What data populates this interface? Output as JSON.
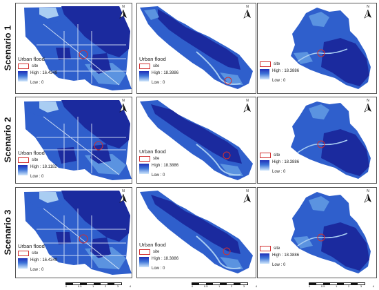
{
  "rows": [
    {
      "label": "Scenario 1",
      "panels": [
        {
          "legend": {
            "title": "Urban flood",
            "site": "site",
            "high": "High : 16.4349",
            "low": "Low : 0"
          }
        },
        {
          "legend": {
            "title": "Urban flood",
            "site": "site",
            "high": "High : 18.3886",
            "low": "Low : 0"
          }
        },
        {
          "legend": {
            "title": "Urban flood",
            "site": "site",
            "high": "High : 18.3886",
            "low": "Low : 0"
          }
        }
      ]
    },
    {
      "label": "Scenario 2",
      "panels": [
        {
          "legend": {
            "title": "Urban flood",
            "site": "site",
            "high": "High : 18.1182",
            "low": "Low : 0"
          }
        },
        {
          "legend": {
            "title": "Urban flood",
            "site": "site",
            "high": "High : 18.3886",
            "low": "Low : 0"
          }
        },
        {
          "legend": {
            "title": "Urban flood",
            "site": "site",
            "high": "High : 18.3886",
            "low": "Low : 0"
          }
        }
      ]
    },
    {
      "label": "Scenario 3",
      "panels": [
        {
          "legend": {
            "title": "Urban flood",
            "site": "site",
            "high": "High : 16.4349",
            "low": "Low : 0"
          }
        },
        {
          "legend": {
            "title": "Urban flood",
            "site": "site",
            "high": "High : 18.3886",
            "low": "Low : 0"
          }
        },
        {
          "legend": {
            "title": "Urban flood",
            "site": "site",
            "high": "High : 18.3886",
            "low": "Low : 0"
          }
        }
      ]
    }
  ],
  "north_label": "N",
  "scalebar_ticks": [
    "0",
    "0.5",
    "1",
    "2",
    "3",
    "4"
  ],
  "colors": {
    "dark": "#1b2a9e",
    "mid": "#2f5fcc",
    "light": "#5b93e0",
    "pale": "#a9cdf2",
    "road": "#e6f0fb",
    "site": "#d23030"
  }
}
